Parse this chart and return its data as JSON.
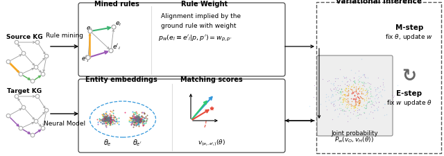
{
  "background_color": "#ffffff",
  "fig_width": 6.4,
  "fig_height": 2.26,
  "left_panel": {
    "source_kg_label": "Source KG",
    "target_kg_label": "Target KG",
    "rule_mining_label": "Rule mining",
    "neural_model_label": "Neural Model"
  },
  "mined_rules_label": "Mined rules",
  "rule_weight_label": "Rule Weight",
  "rule_weight_text_line1": "Alignment implied by the",
  "rule_weight_text_line2": "ground rule with weight",
  "rule_weight_formula": "$p_w(e_i \\equiv e'_i|p,p') = w_{p,p'}$",
  "entity_emb_label": "Entity embeddings",
  "matching_scores_label": "Matching scores",
  "theta_e_label": "$\\theta_e$",
  "theta_eprime_label": "$\\theta_{e'}$",
  "v_label": "$v_{(e_i,e'_i)}(\\theta)$",
  "variational_label": "Variational Inference",
  "joint_prob_line1": "Joint probability",
  "joint_prob_line2": "$P_w(v_O, v_H(\\theta))$",
  "mstep_line1": "M-step",
  "mstep_line2": "fix $\\theta$, update $w$",
  "estep_line1": "E-step",
  "estep_line2": "fix $w$ update $\\theta$",
  "graph_node_color": "#aaaaaa",
  "graph_edge_color": "#999999",
  "highlight_edge_color": "#f5a623",
  "source_path_color": "#5cb85c",
  "target_path_color": "#9b59b6",
  "emb_colors": [
    "#e74c3c",
    "#e67e22",
    "#f1c40f",
    "#2ecc71",
    "#1abc9c",
    "#3498db",
    "#9b59b6",
    "#e91e63",
    "#795548",
    "#607d8b"
  ],
  "box_facecolor": "#ffffff",
  "box_edgecolor": "#333333",
  "dashed_box_edgecolor": "#555555"
}
